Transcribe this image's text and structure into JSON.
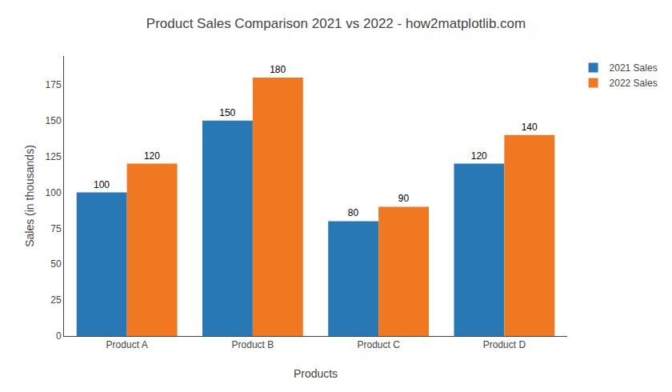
{
  "chart_data": {
    "type": "bar",
    "title": "Product Sales Comparison 2021 vs 2022 - how2matplotlib.com",
    "xlabel": "Products",
    "ylabel": "Sales (in thousands)",
    "categories": [
      "Product A",
      "Product B",
      "Product C",
      "Product D"
    ],
    "series": [
      {
        "name": "2021 Sales",
        "color": "#2878b5",
        "values": [
          100,
          150,
          80,
          120
        ]
      },
      {
        "name": "2022 Sales",
        "color": "#f07820",
        "values": [
          120,
          180,
          90,
          140
        ]
      }
    ],
    "ylim": [
      0,
      195
    ],
    "yticks": [
      0,
      25,
      50,
      75,
      100,
      125,
      150,
      175
    ],
    "legend": "upper right",
    "data_labels": true,
    "grid": false
  }
}
